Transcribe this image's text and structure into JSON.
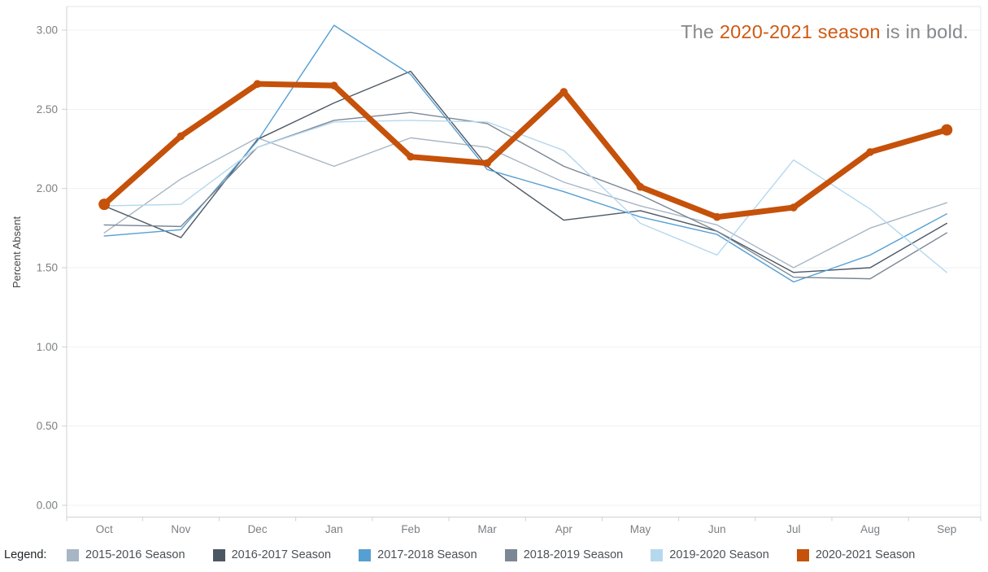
{
  "title": {
    "prefix": "The ",
    "highlight": "2020-2021 season",
    "suffix": " is in bold.",
    "highlight_color": "#ce5a13",
    "text_color": "#85898c"
  },
  "legend": {
    "caption": "Legend:",
    "items": [
      {
        "label": "2015-2016 Season",
        "color": "#a7b5c4"
      },
      {
        "label": "2016-2017 Season",
        "color": "#4c5764"
      },
      {
        "label": "2017-2018 Season",
        "color": "#569fd3"
      },
      {
        "label": "2018-2019 Season",
        "color": "#7b8794"
      },
      {
        "label": "2019-2020 Season",
        "color": "#b5d8ef"
      },
      {
        "label": "2020-2021 Season",
        "color": "#c5510a"
      }
    ]
  },
  "chart_data": {
    "type": "line",
    "title": "The 2020-2021 season is in bold.",
    "xlabel": "",
    "ylabel": "Percent Absent",
    "categories": [
      "Oct",
      "Nov",
      "Dec",
      "Jan",
      "Feb",
      "Mar",
      "Apr",
      "May",
      "Jun",
      "Jul",
      "Aug",
      "Sep"
    ],
    "ylim": [
      0,
      3.07
    ],
    "yticks": [
      0.0,
      0.5,
      1.0,
      1.5,
      2.0,
      2.5,
      3.0
    ],
    "ytick_labels": [
      "0.00",
      "0.50",
      "1.00",
      "1.50",
      "2.00",
      "2.50",
      "3.00"
    ],
    "grid": true,
    "legend_position": "bottom",
    "series": [
      {
        "name": "2015-2016 Season",
        "color": "#a7b5c4",
        "emphasis": false,
        "values": [
          1.72,
          2.06,
          2.32,
          2.14,
          2.32,
          2.26,
          2.04,
          1.89,
          1.77,
          1.5,
          1.75,
          1.91
        ]
      },
      {
        "name": "2016-2017 Season",
        "color": "#4c5764",
        "emphasis": false,
        "values": [
          1.89,
          1.69,
          2.31,
          2.54,
          2.74,
          2.14,
          1.8,
          1.86,
          1.73,
          1.47,
          1.5,
          1.78
        ]
      },
      {
        "name": "2017-2018 Season",
        "color": "#569fd3",
        "emphasis": false,
        "values": [
          1.7,
          1.74,
          2.3,
          3.03,
          2.72,
          2.12,
          1.98,
          1.82,
          1.71,
          1.41,
          1.58,
          1.84
        ]
      },
      {
        "name": "2018-2019 Season",
        "color": "#7b8794",
        "emphasis": false,
        "values": [
          1.77,
          1.76,
          2.26,
          2.43,
          2.48,
          2.41,
          2.14,
          1.96,
          1.73,
          1.44,
          1.43,
          1.72
        ]
      },
      {
        "name": "2019-2020 Season",
        "color": "#b5d8ef",
        "emphasis": false,
        "values": [
          1.89,
          1.9,
          2.26,
          2.42,
          2.43,
          2.42,
          2.24,
          1.78,
          1.58,
          2.18,
          1.87,
          1.47
        ]
      },
      {
        "name": "2020-2021 Season",
        "color": "#c5510a",
        "emphasis": true,
        "values": [
          1.9,
          2.33,
          2.66,
          2.65,
          2.2,
          2.16,
          2.61,
          2.01,
          1.82,
          1.88,
          2.23,
          2.37
        ]
      }
    ]
  }
}
